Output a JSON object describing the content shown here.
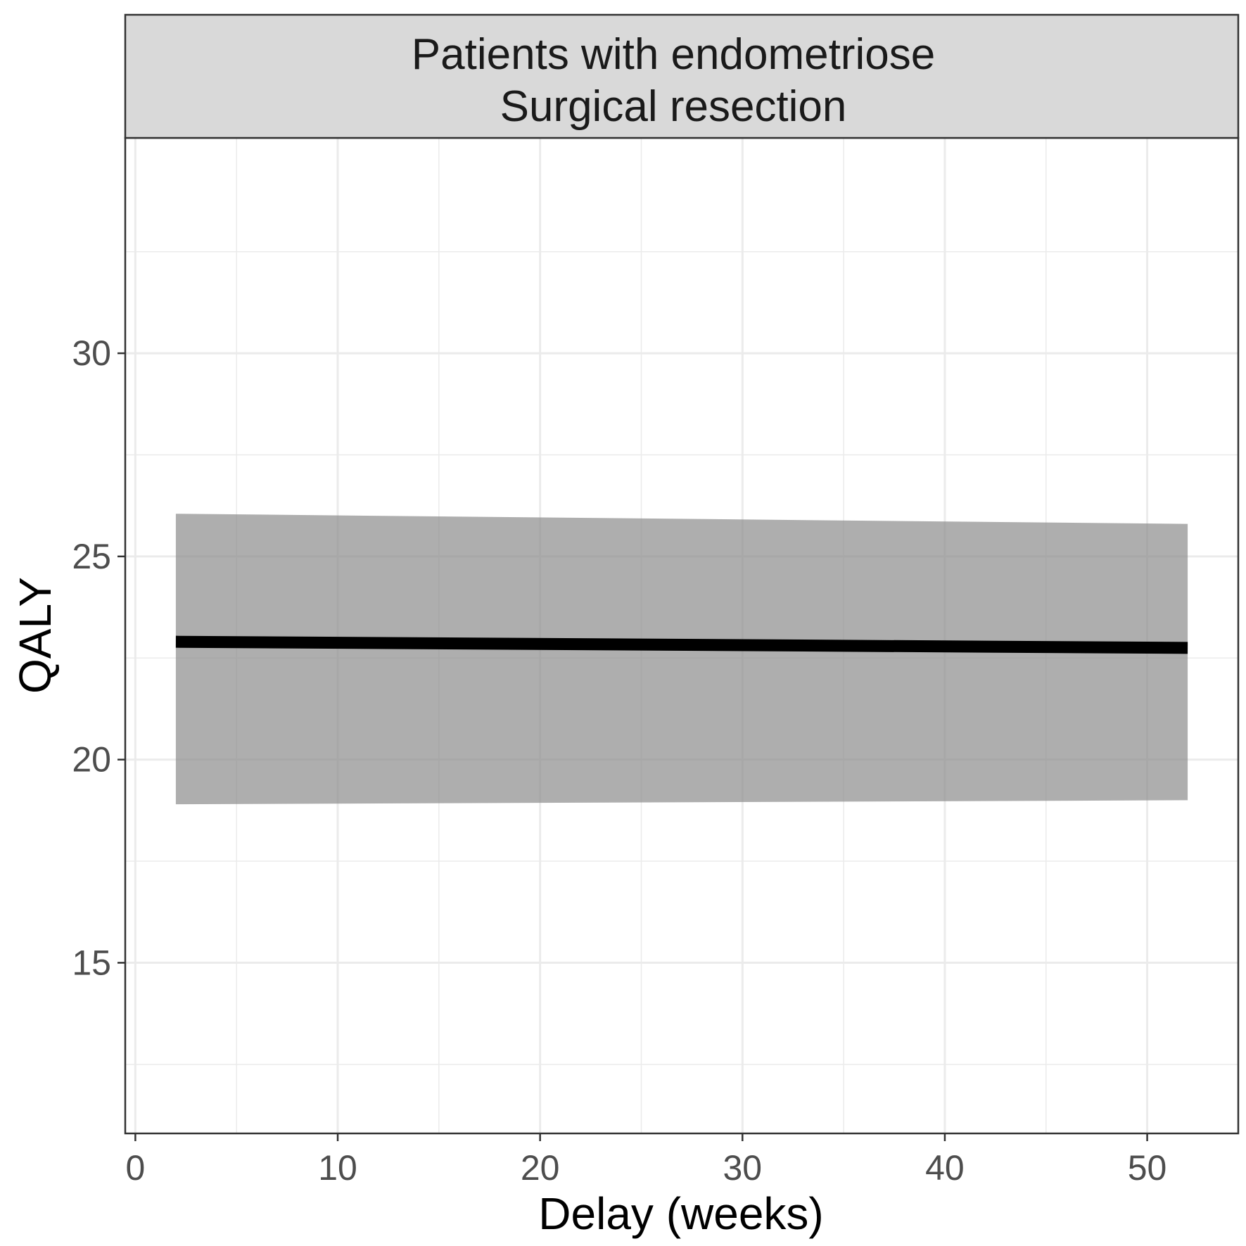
{
  "chart_data": {
    "type": "line",
    "strip": {
      "line1": "Patients with endometriose",
      "line2": "Surgical resection"
    },
    "xlabel": "Delay (weeks)",
    "ylabel": "QALY",
    "xlim": [
      -0.5,
      54.5
    ],
    "ylim": [
      10.8,
      35.3
    ],
    "x_ticks": [
      0,
      10,
      20,
      30,
      40,
      50
    ],
    "y_ticks": [
      15,
      20,
      25,
      30
    ],
    "x_minor": [
      5,
      15,
      25,
      35,
      45
    ],
    "y_minor": [
      12.5,
      17.5,
      22.5,
      27.5,
      32.5
    ],
    "grid": true,
    "series": [
      {
        "x": [
          2,
          52
        ],
        "y": [
          22.9,
          22.75
        ],
        "ymin": [
          18.9,
          19.0
        ],
        "ymax": [
          26.05,
          25.8
        ]
      }
    ],
    "colors": {
      "line": "#000000",
      "ribbon": "#8c8c8c",
      "strip_fill": "#d9d9d9",
      "grid": "#ebebeb"
    }
  }
}
